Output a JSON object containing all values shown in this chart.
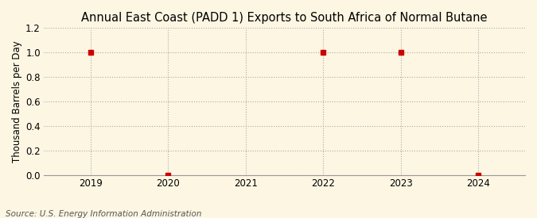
{
  "title": "Annual East Coast (PADD 1) Exports to South Africa of Normal Butane",
  "ylabel": "Thousand Barrels per Day",
  "source": "Source: U.S. Energy Information Administration",
  "background_color": "#fdf6e3",
  "x_data": [
    2019,
    2020,
    2022,
    2023,
    2024
  ],
  "y_data": [
    1.0,
    0.0,
    1.0,
    1.0,
    0.0
  ],
  "xlim": [
    2018.4,
    2024.6
  ],
  "ylim": [
    0.0,
    1.2
  ],
  "yticks": [
    0.0,
    0.2,
    0.4,
    0.6,
    0.8,
    1.0,
    1.2
  ],
  "xticks": [
    2019,
    2020,
    2021,
    2022,
    2023,
    2024
  ],
  "marker_color": "#cc0000",
  "marker": "s",
  "marker_size": 4,
  "grid_color": "#aaaaaa",
  "grid_style": ":",
  "title_fontsize": 10.5,
  "label_fontsize": 8.5,
  "tick_fontsize": 8.5,
  "source_fontsize": 7.5
}
